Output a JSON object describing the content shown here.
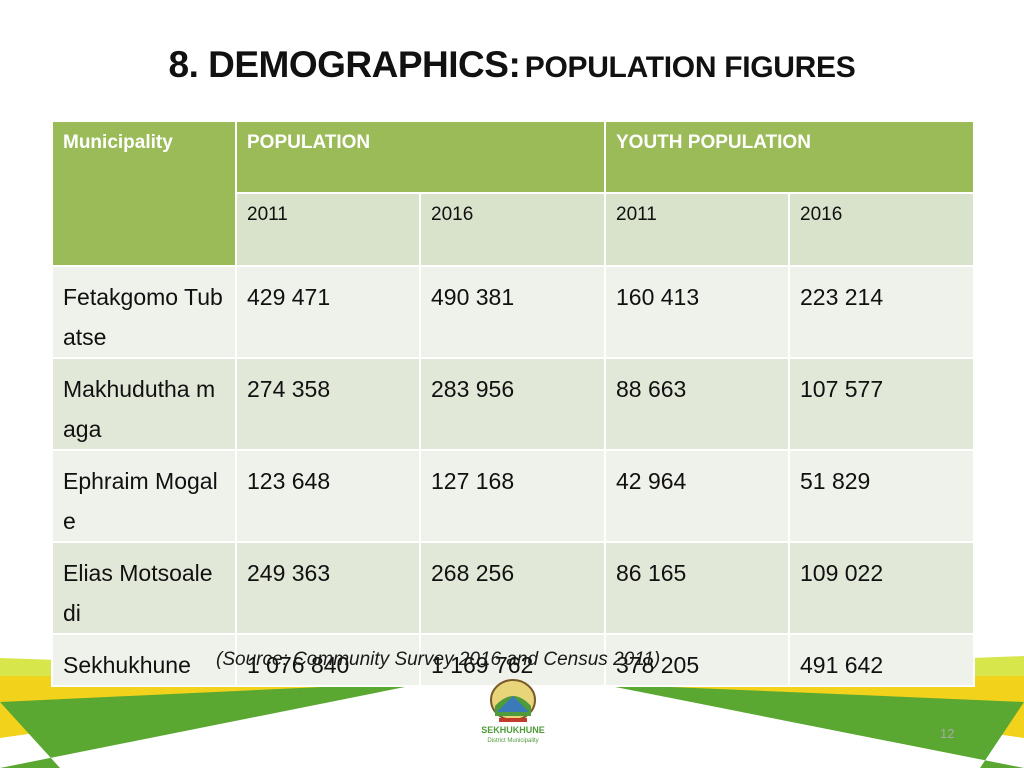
{
  "slide": {
    "title_main": "8. DEMOGRAPHICS:",
    "title_sub": "POPULATION FIGURES",
    "source": "(Source: Community Survey 2016 and Census 2011)",
    "page_number": "12",
    "logo_text": "SEKHUKHUNE",
    "logo_subtext": "District Municipality"
  },
  "table": {
    "header_municipality": "Municipality",
    "header_population": "POPULATION",
    "header_youth": "YOUTH POPULATION",
    "years": [
      "2011",
      "2016",
      "2011",
      "2016"
    ],
    "rows": [
      {
        "municipality": "Fetakgomo Tubatse",
        "pop_2011": "429 471",
        "pop_2016": "490 381",
        "youth_2011": "160 413",
        "youth_2016": "223 214"
      },
      {
        "municipality": "Makhudutha maga",
        "pop_2011": "274 358",
        "pop_2016": "283 956",
        "youth_2011": "88 663",
        "youth_2016": "107 577"
      },
      {
        "municipality": "Ephraim Mogale",
        "pop_2011": "123 648",
        "pop_2016": "127 168",
        "youth_2011": "42 964",
        "youth_2016": "51 829"
      },
      {
        "municipality": "Elias Motsoaledi",
        "pop_2011": "249 363",
        "pop_2016": "268 256",
        "youth_2011": "86 165",
        "youth_2016": "109 022"
      },
      {
        "municipality": "Sekhukhune",
        "pop_2011": "1 076 840",
        "pop_2016": "1 169 762",
        "youth_2011": "378 205",
        "youth_2016": "491 642"
      }
    ]
  },
  "colors": {
    "header_green": "#9bbb59",
    "stripe_green": "#5aa832",
    "stripe_yellow": "#f2d21b"
  }
}
